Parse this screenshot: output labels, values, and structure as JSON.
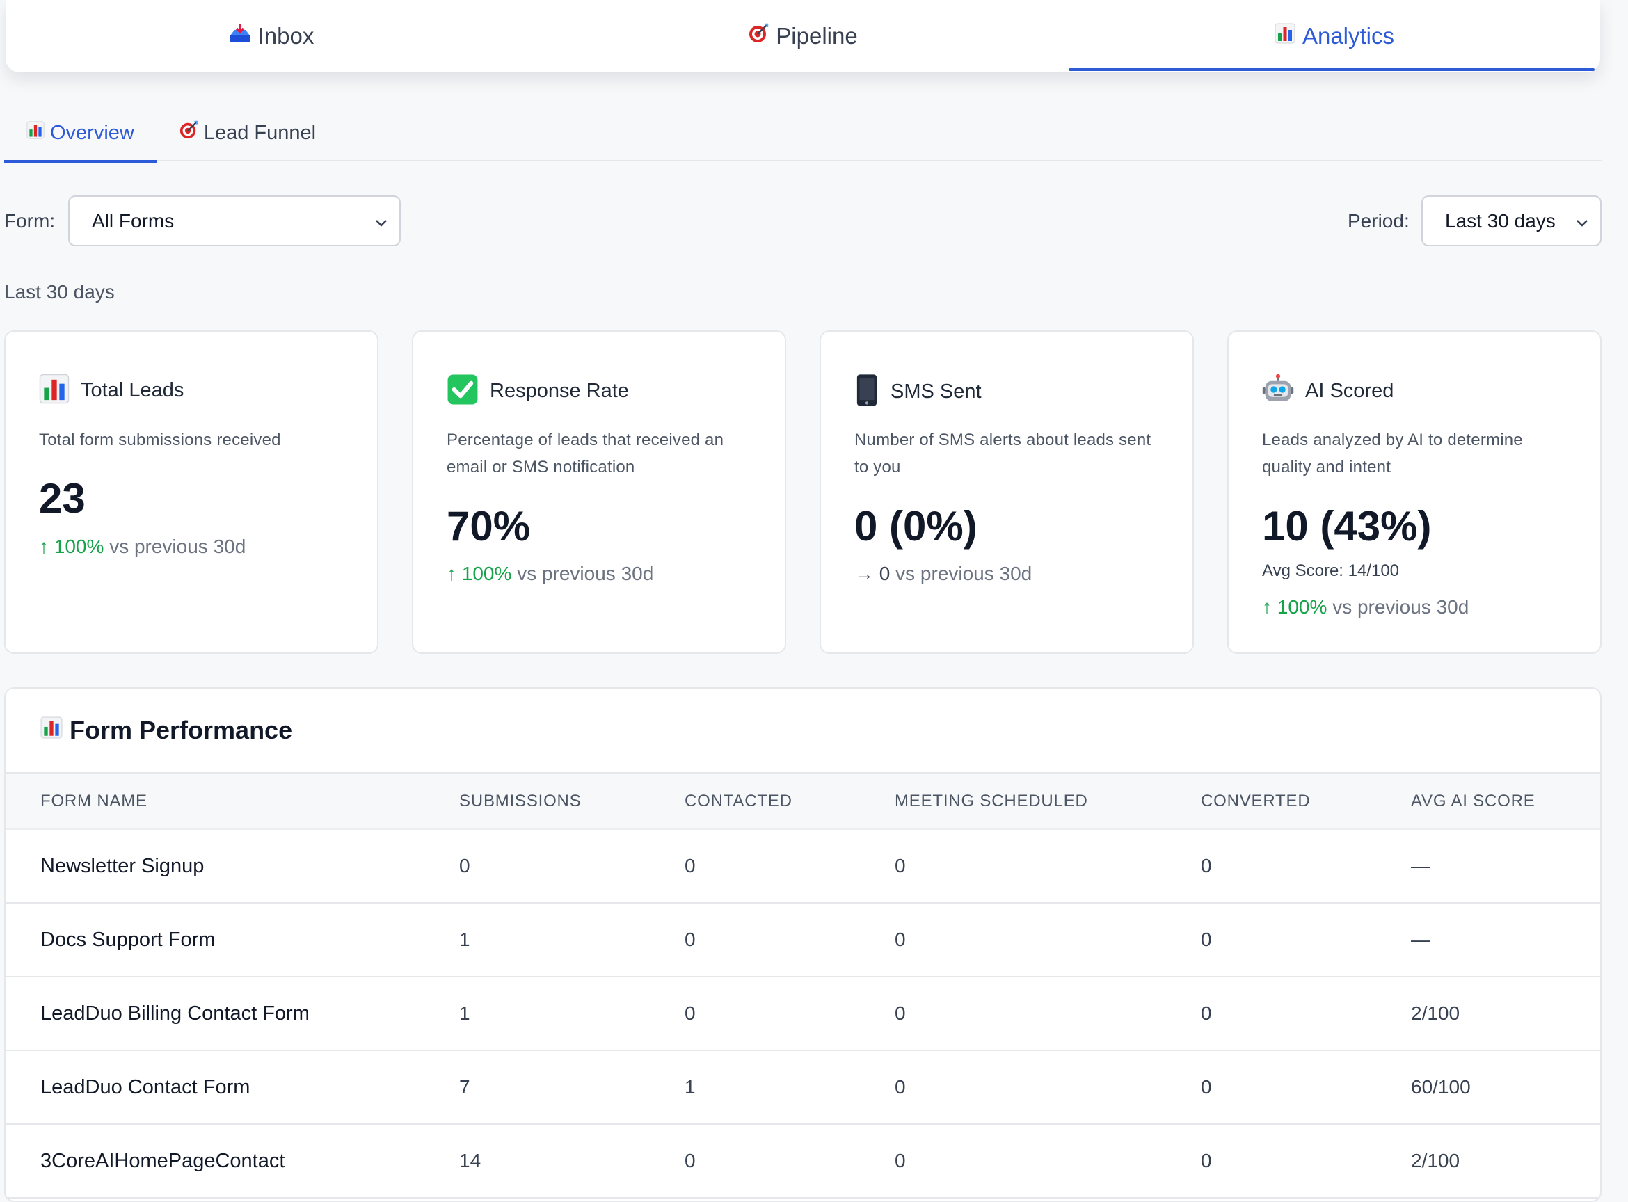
{
  "top_tabs": [
    {
      "label": "Inbox",
      "icon": "inbox-tray-icon"
    },
    {
      "label": "Pipeline",
      "icon": "target-icon"
    },
    {
      "label": "Analytics",
      "icon": "bar-chart-icon",
      "active": true
    }
  ],
  "sub_tabs": [
    {
      "label": "Overview",
      "icon": "bar-chart-icon",
      "active": true
    },
    {
      "label": "Lead Funnel",
      "icon": "target-icon"
    }
  ],
  "filters": {
    "form_label": "Form:",
    "form_value": "All Forms",
    "period_label": "Period:",
    "period_value": "Last 30 days"
  },
  "period_caption": "Last 30 days",
  "cards": [
    {
      "icon": "bar-chart-icon",
      "title": "Total Leads",
      "description": "Total form submissions received",
      "value": "23",
      "trend_arrow": "↑",
      "trend_delta": "100%",
      "trend_text": "vs previous 30d"
    },
    {
      "icon": "check-mark-icon",
      "title": "Response Rate",
      "description": "Percentage of leads that received an email or SMS notification",
      "value": "70%",
      "trend_arrow": "↑",
      "trend_delta": "100%",
      "trend_text": "vs previous 30d"
    },
    {
      "icon": "mobile-phone-icon",
      "title": "SMS Sent",
      "description": "Number of SMS alerts about leads sent to you",
      "value": "0 (0%)",
      "trend_arrow": "→",
      "trend_delta": "0",
      "trend_text": "vs previous 30d"
    },
    {
      "icon": "robot-icon",
      "title": "AI Scored",
      "description": "Leads analyzed by AI to determine quality and intent",
      "value": "10 (43%)",
      "sub_text": "Avg Score: 14/100",
      "trend_arrow": "↑",
      "trend_delta": "100%",
      "trend_text": "vs previous 30d"
    }
  ],
  "form_performance": {
    "title": "Form Performance",
    "columns": [
      "FORM NAME",
      "SUBMISSIONS",
      "CONTACTED",
      "MEETING SCHEDULED",
      "CONVERTED",
      "AVG AI SCORE"
    ],
    "rows": [
      [
        "Newsletter Signup",
        "0",
        "0",
        "0",
        "0",
        "—"
      ],
      [
        "Docs Support Form",
        "1",
        "0",
        "0",
        "0",
        "—"
      ],
      [
        "LeadDuo Billing Contact Form",
        "1",
        "0",
        "0",
        "0",
        "2/100"
      ],
      [
        "LeadDuo Contact Form",
        "7",
        "1",
        "0",
        "0",
        "60/100"
      ],
      [
        "3CoreAIHomePageContact",
        "14",
        "0",
        "0",
        "0",
        "2/100"
      ]
    ]
  },
  "colors": {
    "accent": "#2d5bd7",
    "positive": "#16a34a",
    "background": "#f7f8fa"
  }
}
